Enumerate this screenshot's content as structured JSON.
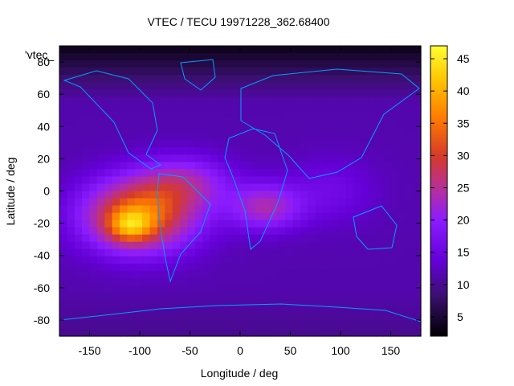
{
  "chart_data": {
    "type": "heatmap",
    "title": "VTEC / TECU 19971228_362.68400",
    "xlabel": "Longitude / deg",
    "ylabel": "Latitude / deg",
    "xlim": [
      -180,
      180
    ],
    "ylim": [
      -90,
      90
    ],
    "x_ticks": [
      -150,
      -100,
      -50,
      0,
      50,
      100,
      150
    ],
    "y_ticks": [
      -80,
      -60,
      -40,
      -20,
      0,
      20,
      40,
      60,
      80
    ],
    "legend_label": "'vtec_",
    "colorbar": {
      "min": 2,
      "max": 47,
      "ticks": [
        5,
        10,
        15,
        20,
        25,
        30,
        35,
        40,
        45
      ],
      "palette": [
        "#000000",
        "#3b0f70",
        "#6500d8",
        "#8b1cff",
        "#b42ea2",
        "#d53a2a",
        "#ff7a00",
        "#ffc400",
        "#ffff33"
      ]
    },
    "blobs": [
      {
        "lon": -100,
        "lat": -15,
        "sigma_lon": 55,
        "sigma_lat": 22,
        "amp": 24
      },
      {
        "lon": -110,
        "lat": -22,
        "sigma_lon": 22,
        "sigma_lat": 10,
        "amp": 12
      },
      {
        "lon": -55,
        "lat": 5,
        "sigma_lon": 45,
        "sigma_lat": 16,
        "amp": 10
      },
      {
        "lon": 25,
        "lat": -10,
        "sigma_lon": 35,
        "sigma_lat": 14,
        "amp": 12
      },
      {
        "lon": 90,
        "lat": 0,
        "sigma_lon": 45,
        "sigma_lat": 20,
        "amp": 4
      }
    ],
    "base_value": 11,
    "north_polar_min": 3,
    "south_polar_min": 8
  }
}
